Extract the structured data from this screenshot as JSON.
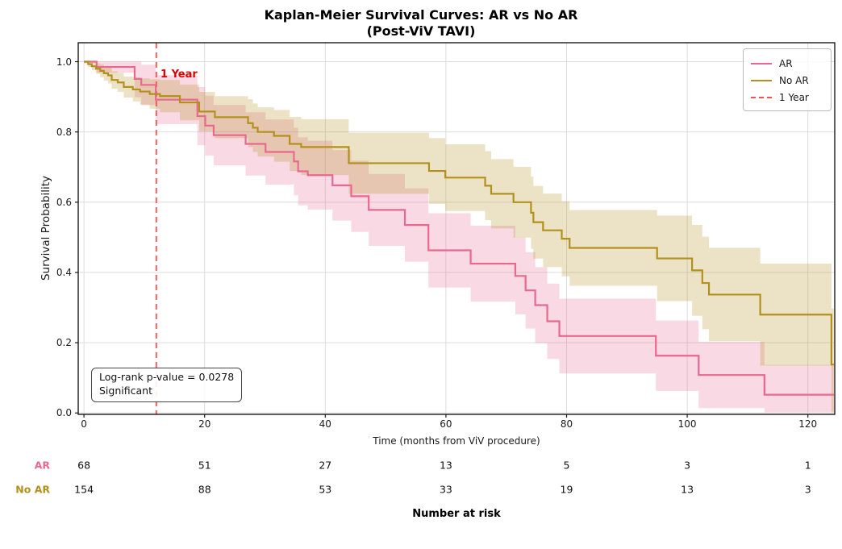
{
  "title": {
    "line1": "Kaplan-Meier Survival Curves: AR vs No AR",
    "line2": "(Post-ViV TAVI)"
  },
  "axes": {
    "xlabel": "Time (months from ViV procedure)",
    "ylabel": "Survival Probability",
    "xtick_values": [
      0,
      20,
      40,
      60,
      80,
      100,
      120
    ],
    "xtick_labels": [
      "0",
      "20",
      "40",
      "60",
      "80",
      "100",
      "120"
    ],
    "ytick_values": [
      0.0,
      0.2,
      0.4,
      0.6,
      0.8,
      1.0
    ],
    "ytick_labels": [
      "0.0",
      "0.2",
      "0.4",
      "0.6",
      "0.8",
      "1.0"
    ],
    "xlim": [
      -0.95,
      124.45
    ],
    "ylim": [
      0,
      1.05
    ],
    "grid": true
  },
  "legend": {
    "position": "upper right",
    "items": [
      {
        "label": "AR",
        "color": "#e8698f",
        "dash": false
      },
      {
        "label": "No AR",
        "color": "#b2901c",
        "dash": false
      },
      {
        "label": "1 Year",
        "color": "#ef5350",
        "dash": true
      }
    ]
  },
  "marker": {
    "label": "1 Year",
    "x": 12,
    "color": "#ef5350",
    "label_color": "#dd0000"
  },
  "annotation": {
    "line1": "Log-rank p-value = 0.0278",
    "line2": "Significant"
  },
  "risk_table": {
    "title": "Number at risk",
    "time_points": [
      0,
      20,
      40,
      60,
      80,
      100,
      120
    ],
    "rows": [
      {
        "label": "AR",
        "color": "#e8698f",
        "values": [
          "68",
          "51",
          "27",
          "13",
          "5",
          "3",
          "1"
        ]
      },
      {
        "label": "No AR",
        "color": "#b2901c",
        "values": [
          "154",
          "88",
          "53",
          "33",
          "19",
          "13",
          "3"
        ]
      }
    ]
  },
  "chart_data": {
    "type": "line",
    "subtype": "kaplan-meier-step",
    "title": "Kaplan-Meier Survival Curves: AR vs No AR (Post-ViV TAVI)",
    "xlabel": "Time (months from ViV procedure)",
    "ylabel": "Survival Probability",
    "xlim": [
      -0.95,
      124.45
    ],
    "ylim": [
      0,
      1.05
    ],
    "log_rank_p_value": 0.0278,
    "significance": "Significant",
    "vline": {
      "x": 12,
      "label": "1 Year"
    },
    "x_end": 124.3,
    "grid_color": "#d8d8d8",
    "spine_color": "#1a1a1a",
    "band_alpha": 0.25,
    "series": [
      {
        "name": "AR",
        "color": "#e8698f",
        "n_initial": 68,
        "points": [
          [
            0,
            1.0
          ],
          [
            2.1,
            0.985
          ],
          [
            8.4,
            0.951
          ],
          [
            9.5,
            0.934
          ],
          [
            11.9,
            0.892
          ],
          [
            18.8,
            0.845
          ],
          [
            20.1,
            0.818
          ],
          [
            21.5,
            0.791
          ],
          [
            26.8,
            0.766
          ],
          [
            30.1,
            0.743
          ],
          [
            34.8,
            0.716
          ],
          [
            35.5,
            0.688
          ],
          [
            37.1,
            0.677
          ],
          [
            41.2,
            0.648
          ],
          [
            44.3,
            0.617
          ],
          [
            47.2,
            0.578
          ],
          [
            53.2,
            0.535
          ],
          [
            57.1,
            0.463
          ],
          [
            64.1,
            0.425
          ],
          [
            71.5,
            0.39
          ],
          [
            73.2,
            0.349
          ],
          [
            74.8,
            0.307
          ],
          [
            76.8,
            0.261
          ],
          [
            78.8,
            0.219
          ],
          [
            94.8,
            0.163
          ],
          [
            101.9,
            0.108
          ],
          [
            112.8,
            0.052
          ]
        ],
        "ci_halfwidth_anchors": [
          [
            0,
            0.004
          ],
          [
            2,
            0.016
          ],
          [
            8,
            0.05
          ],
          [
            12,
            0.07
          ],
          [
            20,
            0.085
          ],
          [
            40,
            0.1
          ],
          [
            70,
            0.11
          ],
          [
            95,
            0.1
          ],
          [
            113,
            0.085
          ],
          [
            124.4,
            0.08
          ]
        ]
      },
      {
        "name": "No AR",
        "color": "#b2901c",
        "n_initial": 154,
        "points": [
          [
            0,
            1.0
          ],
          [
            0.7,
            0.993
          ],
          [
            1.3,
            0.987
          ],
          [
            2.0,
            0.98
          ],
          [
            2.7,
            0.974
          ],
          [
            3.3,
            0.967
          ],
          [
            4.0,
            0.961
          ],
          [
            4.6,
            0.948
          ],
          [
            5.6,
            0.941
          ],
          [
            6.6,
            0.928
          ],
          [
            8.1,
            0.921
          ],
          [
            9.3,
            0.915
          ],
          [
            10.9,
            0.908
          ],
          [
            12.6,
            0.902
          ],
          [
            15.9,
            0.884
          ],
          [
            19.1,
            0.858
          ],
          [
            21.7,
            0.842
          ],
          [
            27.2,
            0.825
          ],
          [
            28.0,
            0.812
          ],
          [
            28.8,
            0.8
          ],
          [
            31.5,
            0.789
          ],
          [
            34.1,
            0.766
          ],
          [
            36.0,
            0.757
          ],
          [
            43.9,
            0.711
          ],
          [
            57.2,
            0.689
          ],
          [
            59.9,
            0.67
          ],
          [
            66.5,
            0.647
          ],
          [
            67.5,
            0.624
          ],
          [
            71.2,
            0.6
          ],
          [
            74.1,
            0.57
          ],
          [
            74.5,
            0.543
          ],
          [
            76.1,
            0.52
          ],
          [
            79.2,
            0.496
          ],
          [
            80.5,
            0.47
          ],
          [
            95.0,
            0.44
          ],
          [
            100.8,
            0.406
          ],
          [
            102.5,
            0.37
          ],
          [
            103.6,
            0.337
          ],
          [
            112.1,
            0.28
          ],
          [
            123.9,
            0.138
          ]
        ],
        "ci_halfwidth_anchors": [
          [
            0,
            0.004
          ],
          [
            3,
            0.02
          ],
          [
            12,
            0.045
          ],
          [
            25,
            0.065
          ],
          [
            40,
            0.085
          ],
          [
            70,
            0.1
          ],
          [
            90,
            0.115
          ],
          [
            105,
            0.135
          ],
          [
            112,
            0.145
          ],
          [
            124.4,
            0.16
          ]
        ]
      }
    ]
  }
}
